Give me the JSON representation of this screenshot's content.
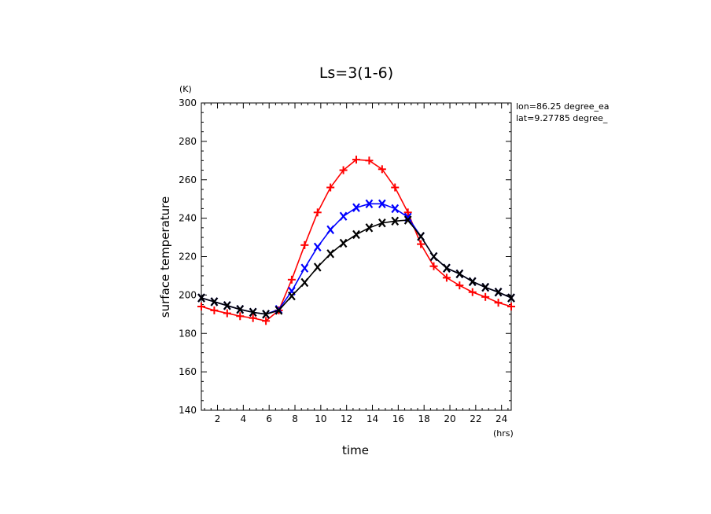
{
  "chart_data": {
    "type": "line",
    "title": "Ls=3(1-6)",
    "xlabel": "time",
    "ylabel": "surface temperature",
    "x_unit": "(hrs)",
    "y_unit": "(K)",
    "xlim": [
      0.75,
      24.75
    ],
    "ylim": [
      140,
      300
    ],
    "x_ticks": [
      2,
      4,
      6,
      8,
      10,
      12,
      14,
      16,
      18,
      20,
      22,
      24
    ],
    "y_ticks": [
      140,
      160,
      180,
      200,
      220,
      240,
      260,
      280,
      300
    ],
    "annotations": [
      "lon=86.25 degree_ea",
      "lat=9.27785 degree_"
    ],
    "x": [
      0.75,
      1.75,
      2.75,
      3.75,
      4.75,
      5.75,
      6.75,
      7.75,
      8.75,
      9.75,
      10.75,
      11.75,
      12.75,
      13.75,
      14.75,
      15.75,
      16.75,
      17.75,
      18.75,
      19.75,
      20.75,
      21.75,
      22.75,
      23.75,
      24.75
    ],
    "series": [
      {
        "color": "#ff0000",
        "marker": "plus",
        "values": [
          194,
          192,
          190.5,
          189,
          188,
          186.5,
          192,
          208,
          226,
          243,
          256,
          265,
          270.5,
          270,
          265.5,
          256,
          243,
          226.5,
          215,
          209,
          205,
          201.5,
          199,
          196,
          194
        ]
      },
      {
        "color": "#0000ff",
        "marker": "x",
        "values": [
          198.5,
          196.5,
          194.5,
          192.5,
          191,
          190,
          192.5,
          202,
          214,
          225,
          234,
          241,
          245.5,
          247.5,
          247.5,
          245,
          240.5,
          230.5,
          220,
          214,
          211,
          207,
          204,
          201.5,
          198.5
        ]
      },
      {
        "color": "#000000",
        "marker": "x",
        "values": [
          198.5,
          196.5,
          194.5,
          192.5,
          191,
          190,
          192,
          199.5,
          206.5,
          214.5,
          221.5,
          227,
          231.5,
          235,
          237.5,
          238.5,
          239,
          230.5,
          220,
          214,
          211,
          207,
          204,
          201.5,
          198.5
        ]
      }
    ]
  }
}
